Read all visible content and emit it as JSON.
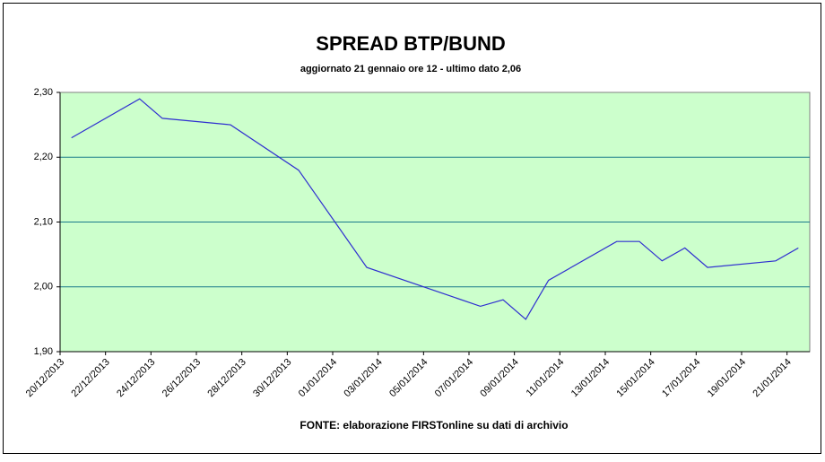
{
  "chart_data": {
    "type": "line",
    "title": "SPREAD BTP/BUND",
    "subtitle": "aggiornato 21 gennaio ore 12 - ultimo dato 2,06",
    "source": "FONTE: elaborazione FIRSTonline su dati di archivio",
    "x": [
      "20/12/2013",
      "23/12/2013",
      "24/12/2013",
      "27/12/2013",
      "30/12/2013",
      "02/01/2014",
      "07/01/2014",
      "08/01/2014",
      "09/01/2014",
      "10/01/2014",
      "13/01/2014",
      "14/01/2014",
      "15/01/2014",
      "16/01/2014",
      "17/01/2014",
      "20/01/2014",
      "21/01/2014"
    ],
    "series": [
      {
        "color": "#2f2fd0",
        "values": [
          2.23,
          2.29,
          2.26,
          2.25,
          2.18,
          2.03,
          1.97,
          1.98,
          1.95,
          2.01,
          2.07,
          2.07,
          2.04,
          2.06,
          2.03,
          2.04,
          2.06
        ]
      }
    ],
    "xlim": [
      "20/12/2013",
      "21/01/2014"
    ],
    "xticks": [
      "20/12/2013",
      "22/12/2013",
      "24/12/2013",
      "26/12/2013",
      "28/12/2013",
      "30/12/2013",
      "01/01/2014",
      "03/01/2014",
      "05/01/2014",
      "07/01/2014",
      "09/01/2014",
      "11/01/2014",
      "13/01/2014",
      "15/01/2014",
      "17/01/2014",
      "19/01/2014",
      "21/01/2014"
    ],
    "ylim": [
      1.9,
      2.3
    ],
    "yticks": [
      {
        "value": 1.9,
        "label": "1,90"
      },
      {
        "value": 2.0,
        "label": "2,00"
      },
      {
        "value": 2.1,
        "label": "2,10"
      },
      {
        "value": 2.2,
        "label": "2,20"
      },
      {
        "value": 2.3,
        "label": "2,30"
      }
    ],
    "grid": true,
    "plot_background": "#ccffcc",
    "grid_color": "#1a7a8a"
  }
}
